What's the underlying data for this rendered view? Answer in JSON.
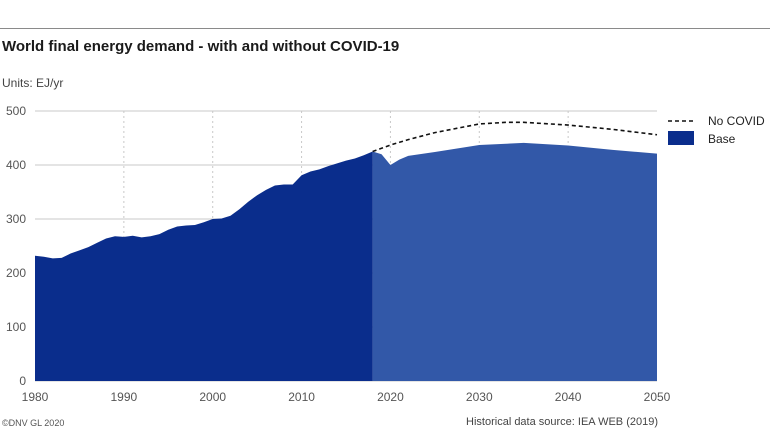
{
  "header": {
    "title": "World final energy demand - with and without COVID-19",
    "units": "Units: EJ/yr"
  },
  "footer": {
    "copyright": "©DNV GL 2020",
    "source": "Historical data source: IEA WEB (2019)"
  },
  "colors": {
    "history": "#0a2d8c",
    "forecast": "#3258a8",
    "no_covid_line": "#111111",
    "grid": "#c8c8c8"
  },
  "chart_data": {
    "type": "area",
    "title": "World final energy demand - with and without COVID-19",
    "xlabel": "",
    "ylabel": "",
    "xlim": [
      1980,
      2050
    ],
    "ylim": [
      0,
      500
    ],
    "x_ticks": [
      1980,
      1990,
      2000,
      2010,
      2020,
      2030,
      2040,
      2050
    ],
    "y_ticks": [
      0,
      100,
      200,
      300,
      400,
      500
    ],
    "grid": {
      "vertical": true,
      "horizontal": true
    },
    "legend_position": "top-right",
    "series": [
      {
        "name": "Base",
        "style": "filled-area",
        "historical_until": 2018,
        "x": [
          1980,
          1981,
          1982,
          1983,
          1984,
          1985,
          1986,
          1987,
          1988,
          1989,
          1990,
          1991,
          1992,
          1993,
          1994,
          1995,
          1996,
          1997,
          1998,
          1999,
          2000,
          2001,
          2002,
          2003,
          2004,
          2005,
          2006,
          2007,
          2008,
          2009,
          2010,
          2011,
          2012,
          2013,
          2014,
          2015,
          2016,
          2017,
          2018,
          2019,
          2020,
          2021,
          2022,
          2025,
          2030,
          2035,
          2040,
          2045,
          2050
        ],
        "values": [
          232,
          230,
          227,
          228,
          236,
          242,
          248,
          256,
          264,
          268,
          267,
          269,
          266,
          268,
          272,
          280,
          286,
          288,
          289,
          294,
          300,
          301,
          306,
          318,
          332,
          344,
          354,
          362,
          364,
          364,
          381,
          388,
          392,
          398,
          403,
          408,
          412,
          418,
          425,
          420,
          400,
          410,
          417,
          424,
          437,
          441,
          436,
          428,
          421
        ]
      },
      {
        "name": "No COVID",
        "style": "dashed-line",
        "x": [
          2018,
          2019,
          2020,
          2022,
          2025,
          2030,
          2033,
          2035,
          2040,
          2045,
          2050
        ],
        "values": [
          425,
          431,
          437,
          447,
          460,
          476,
          479,
          479,
          474,
          466,
          456
        ]
      }
    ]
  }
}
